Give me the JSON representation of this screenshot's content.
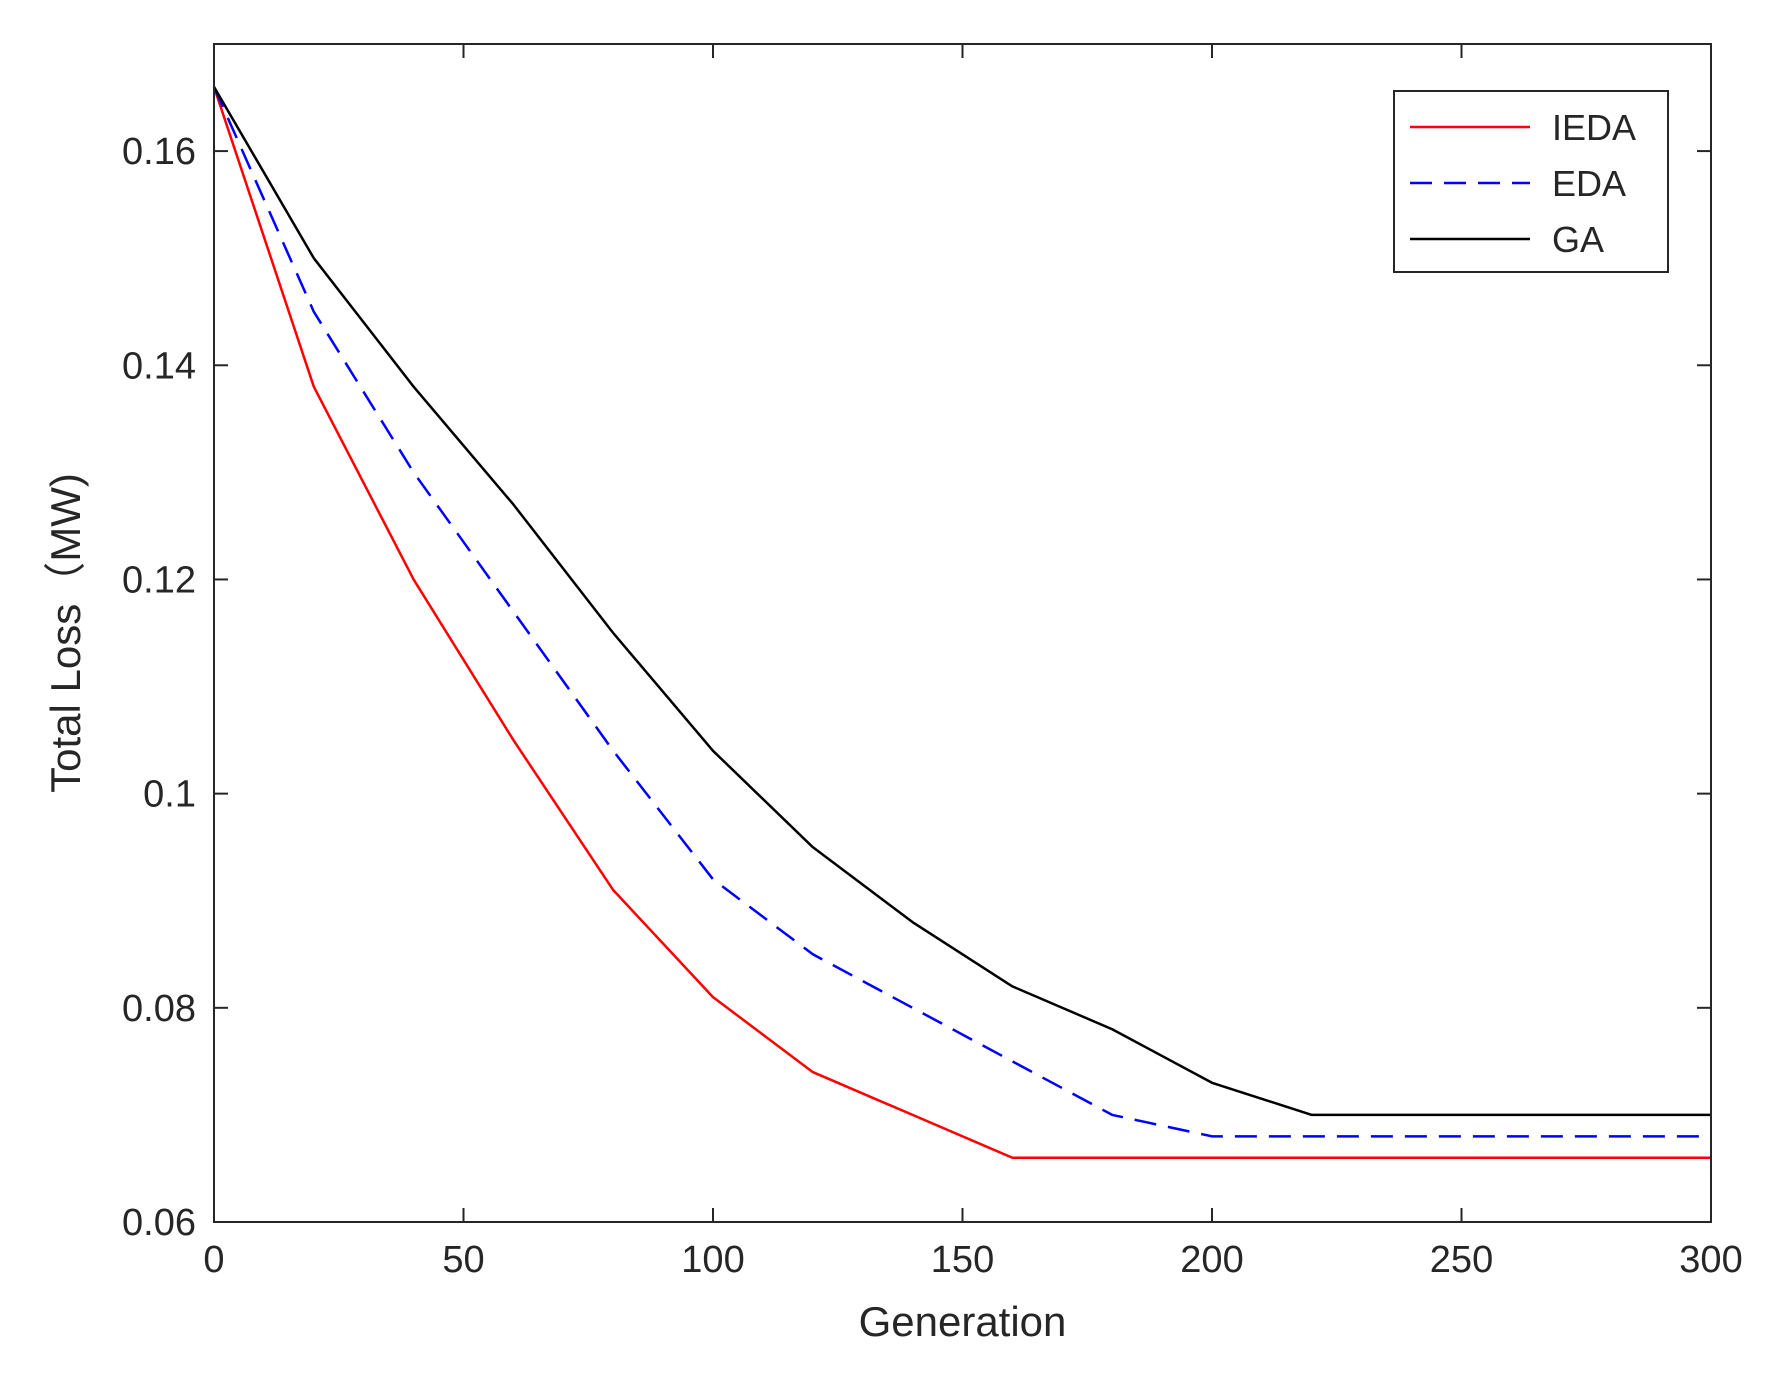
{
  "chart_data": {
    "type": "line",
    "title": "",
    "xlabel": "Generation",
    "ylabel": "Total Loss（MW)",
    "xlim": [
      0,
      300
    ],
    "ylim": [
      0.06,
      0.17
    ],
    "xticks": [
      0,
      50,
      100,
      150,
      200,
      250,
      300
    ],
    "xtick_labels": [
      "0",
      "50",
      "100",
      "150",
      "200",
      "250",
      "300"
    ],
    "yticks": [
      0.06,
      0.08,
      0.1,
      0.12,
      0.14,
      0.16
    ],
    "ytick_labels": [
      "0.06",
      "0.08",
      "0.1",
      "0.12",
      "0.14",
      "0.16"
    ],
    "legend_position": "top-right",
    "series": [
      {
        "name": "IEDA",
        "color": "#ff0000",
        "dash": "solid",
        "x": [
          0,
          20,
          40,
          60,
          80,
          100,
          120,
          140,
          160,
          180,
          200,
          220,
          240,
          260,
          280,
          300
        ],
        "y": [
          0.166,
          0.138,
          0.12,
          0.105,
          0.091,
          0.081,
          0.074,
          0.07,
          0.066,
          0.066,
          0.066,
          0.066,
          0.066,
          0.066,
          0.066,
          0.066
        ]
      },
      {
        "name": "EDA",
        "color": "#0000ff",
        "dash": "dashed",
        "x": [
          0,
          20,
          40,
          60,
          80,
          100,
          120,
          140,
          160,
          180,
          200,
          220,
          240,
          260,
          280,
          300
        ],
        "y": [
          0.166,
          0.145,
          0.13,
          0.117,
          0.104,
          0.092,
          0.085,
          0.08,
          0.075,
          0.07,
          0.068,
          0.068,
          0.068,
          0.068,
          0.068,
          0.068
        ]
      },
      {
        "name": "GA",
        "color": "#000000",
        "dash": "solid",
        "x": [
          0,
          20,
          40,
          60,
          80,
          100,
          120,
          140,
          160,
          180,
          200,
          220,
          240,
          260,
          280,
          300
        ],
        "y": [
          0.166,
          0.15,
          0.138,
          0.127,
          0.115,
          0.104,
          0.095,
          0.088,
          0.082,
          0.078,
          0.073,
          0.07,
          0.07,
          0.07,
          0.07,
          0.07
        ]
      }
    ]
  }
}
